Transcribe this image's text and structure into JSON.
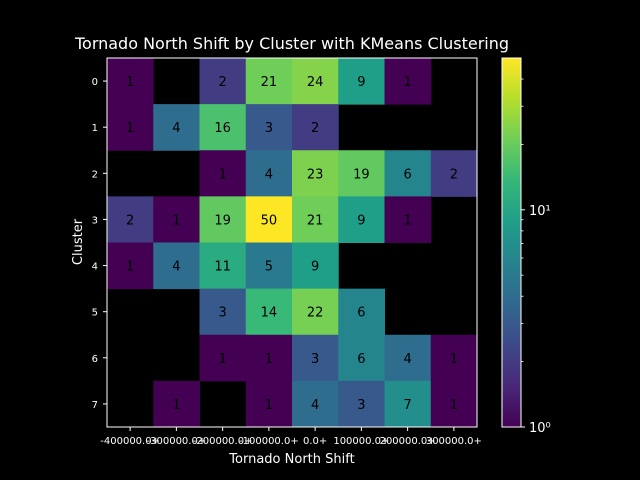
{
  "chart_data": {
    "type": "heatmap",
    "title": "Tornado North Shift by Cluster with KMeans Clustering",
    "xlabel": "Tornado North Shift",
    "ylabel": "Cluster",
    "x_categories": [
      "-400000.0+",
      "-300000.0+",
      "-200000.0+",
      "-100000.0+",
      "0.0+",
      "100000.0+",
      "200000.0+",
      "300000.0+"
    ],
    "y_categories": [
      "0",
      "1",
      "2",
      "3",
      "4",
      "5",
      "6",
      "7"
    ],
    "values": [
      [
        1,
        null,
        2,
        21,
        24,
        9,
        1,
        null
      ],
      [
        1,
        4,
        16,
        3,
        2,
        null,
        null,
        null
      ],
      [
        null,
        null,
        1,
        4,
        23,
        19,
        6,
        2
      ],
      [
        2,
        1,
        19,
        50,
        21,
        9,
        1,
        null
      ],
      [
        1,
        4,
        11,
        5,
        9,
        null,
        null,
        null
      ],
      [
        null,
        null,
        3,
        14,
        22,
        6,
        null,
        null
      ],
      [
        null,
        null,
        1,
        1,
        3,
        6,
        4,
        1
      ],
      [
        null,
        1,
        null,
        1,
        4,
        3,
        7,
        1
      ]
    ],
    "colorbar": {
      "scale": "log",
      "colormap": "viridis",
      "range": [
        1,
        50
      ],
      "ticks": [
        {
          "value": 1,
          "label": "10⁰"
        },
        {
          "value": 10,
          "label": "10¹"
        }
      ]
    }
  }
}
